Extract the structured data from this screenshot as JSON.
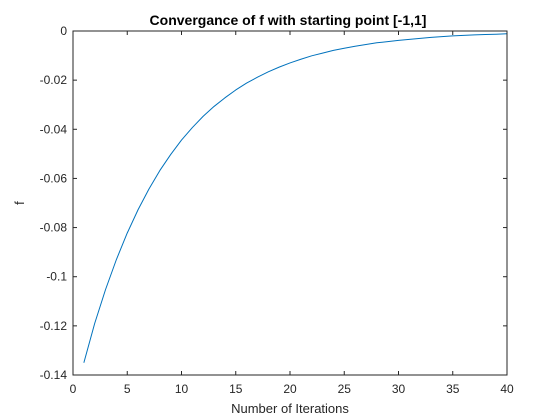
{
  "chart_data": {
    "type": "line",
    "title": "Convergance of f with starting point [-1,1]",
    "xlabel": "Number of Iterations",
    "ylabel": "f",
    "xlim": [
      0,
      40
    ],
    "ylim": [
      -0.14,
      0
    ],
    "xticks": [
      "0",
      "5",
      "10",
      "15",
      "20",
      "25",
      "30",
      "35",
      "40"
    ],
    "yticks": [
      "0",
      "-0.02",
      "-0.04",
      "-0.06",
      "-0.08",
      "-0.1",
      "-0.12",
      "-0.14"
    ],
    "grid": false,
    "line_color": "#0072BD",
    "series": [
      {
        "x": [
          1,
          2,
          3,
          4,
          5,
          6,
          7,
          8,
          9,
          10,
          11,
          12,
          13,
          14,
          15,
          16,
          17,
          18,
          19,
          20,
          21,
          22,
          23,
          24,
          25,
          26,
          27,
          28,
          29,
          30,
          31,
          32,
          33,
          34,
          35,
          36,
          37,
          38,
          39,
          40
        ],
        "values": [
          -0.135,
          -0.119,
          -0.1052,
          -0.093,
          -0.0822,
          -0.0727,
          -0.0643,
          -0.0568,
          -0.0503,
          -0.0444,
          -0.0393,
          -0.0347,
          -0.0307,
          -0.0272,
          -0.024,
          -0.0212,
          -0.0188,
          -0.0166,
          -0.0147,
          -0.013,
          -0.0115,
          -0.0101,
          -0.009,
          -0.0079,
          -0.007,
          -0.0062,
          -0.0055,
          -0.0048,
          -0.0043,
          -0.0038,
          -0.0034,
          -0.003,
          -0.0026,
          -0.0023,
          -0.002,
          -0.0018,
          -0.0016,
          -0.0014,
          -0.0013,
          -0.0011
        ]
      }
    ]
  }
}
